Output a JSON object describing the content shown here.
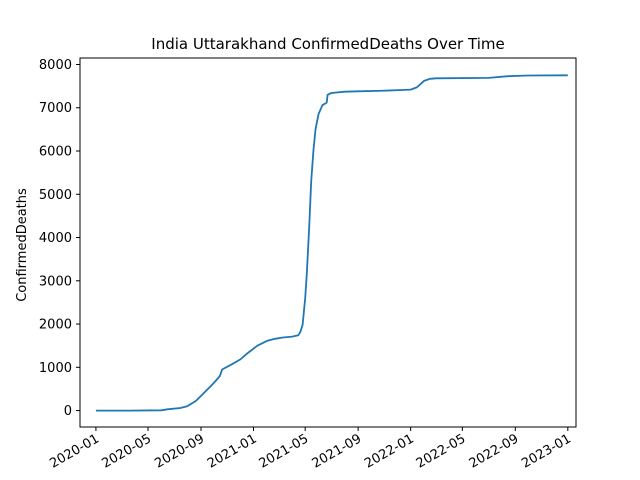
{
  "chart_data": {
    "type": "line",
    "title": "India Uttarakhand ConfirmedDeaths Over Time",
    "xlabel": "",
    "ylabel": "ConfirmedDeaths",
    "grid": false,
    "legend": "none",
    "xlim": [
      "2019-11-25",
      "2023-01-20"
    ],
    "ylim": [
      -380,
      8150
    ],
    "x_ticks": [
      "2020-01",
      "2020-05",
      "2020-09",
      "2021-01",
      "2021-05",
      "2021-09",
      "2022-01",
      "2022-05",
      "2022-09",
      "2023-01"
    ],
    "y_ticks": [
      0,
      1000,
      2000,
      3000,
      4000,
      5000,
      6000,
      7000,
      8000
    ],
    "series": [
      {
        "color": "#1f77b4",
        "points": [
          [
            "2020-01-01",
            0
          ],
          [
            "2020-03-15",
            0
          ],
          [
            "2020-06-01",
            5
          ],
          [
            "2020-06-15",
            30
          ],
          [
            "2020-07-15",
            60
          ],
          [
            "2020-07-31",
            100
          ],
          [
            "2020-08-20",
            220
          ],
          [
            "2020-09-10",
            430
          ],
          [
            "2020-10-01",
            640
          ],
          [
            "2020-10-15",
            800
          ],
          [
            "2020-10-20",
            950
          ],
          [
            "2020-11-10",
            1060
          ],
          [
            "2020-12-01",
            1180
          ],
          [
            "2020-12-20",
            1340
          ],
          [
            "2021-01-10",
            1500
          ],
          [
            "2021-02-01",
            1610
          ],
          [
            "2021-02-20",
            1660
          ],
          [
            "2021-03-10",
            1690
          ],
          [
            "2021-04-01",
            1710
          ],
          [
            "2021-04-15",
            1740
          ],
          [
            "2021-04-20",
            1820
          ],
          [
            "2021-04-25",
            1980
          ],
          [
            "2021-05-01",
            2600
          ],
          [
            "2021-05-05",
            3200
          ],
          [
            "2021-05-10",
            4200
          ],
          [
            "2021-05-15",
            5300
          ],
          [
            "2021-05-20",
            6000
          ],
          [
            "2021-05-25",
            6500
          ],
          [
            "2021-06-01",
            6850
          ],
          [
            "2021-06-10",
            7060
          ],
          [
            "2021-06-20",
            7120
          ],
          [
            "2021-06-22",
            7300
          ],
          [
            "2021-07-01",
            7340
          ],
          [
            "2021-08-01",
            7370
          ],
          [
            "2021-09-01",
            7380
          ],
          [
            "2021-11-01",
            7395
          ],
          [
            "2022-01-01",
            7420
          ],
          [
            "2022-01-15",
            7470
          ],
          [
            "2022-02-01",
            7620
          ],
          [
            "2022-02-15",
            7670
          ],
          [
            "2022-03-01",
            7680
          ],
          [
            "2022-07-01",
            7690
          ],
          [
            "2022-08-15",
            7730
          ],
          [
            "2022-10-01",
            7745
          ],
          [
            "2023-01-01",
            7750
          ]
        ]
      }
    ]
  }
}
